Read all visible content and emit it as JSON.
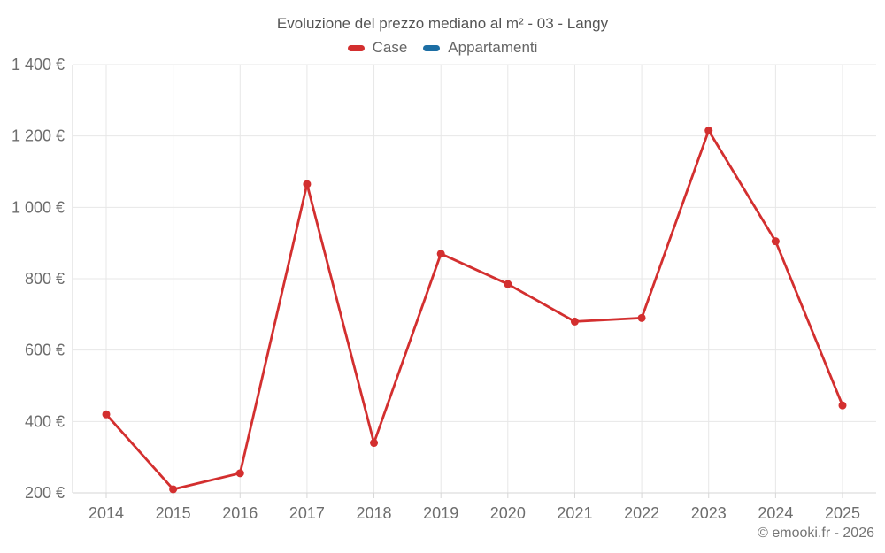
{
  "chart": {
    "title": "Evoluzione del prezzo mediano al m² - 03 - Langy",
    "legend": [
      {
        "label": "Case",
        "color": "#d32f2f"
      },
      {
        "label": "Appartamenti",
        "color": "#1c6ea4"
      }
    ],
    "footer": "© emooki.fr - 2026"
  },
  "chart_data": {
    "type": "line",
    "title": "Evoluzione del prezzo mediano al m² - 03 - Langy",
    "x": [
      2014,
      2015,
      2016,
      2017,
      2018,
      2019,
      2020,
      2021,
      2022,
      2023,
      2024,
      2025
    ],
    "series": [
      {
        "name": "Case",
        "color": "#d32f2f",
        "values": [
          420,
          210,
          255,
          1065,
          340,
          870,
          785,
          680,
          690,
          1215,
          905,
          445
        ]
      },
      {
        "name": "Appartamenti",
        "color": "#1c6ea4",
        "values": []
      }
    ],
    "xlabel": "",
    "ylabel": "",
    "ylim": [
      200,
      1400
    ],
    "yticks": [
      200,
      400,
      600,
      800,
      1000,
      1200,
      1400
    ],
    "ytick_labels": [
      "200 €",
      "400 €",
      "600 €",
      "800 €",
      "1 000 €",
      "1 200 €",
      "1 400 €"
    ],
    "currency": "€",
    "grid": true,
    "legend_position": "top",
    "colors": {
      "grid": "#e7e7e7",
      "axis": "#d6d6d6",
      "tick_text": "#6d6d6d"
    }
  }
}
